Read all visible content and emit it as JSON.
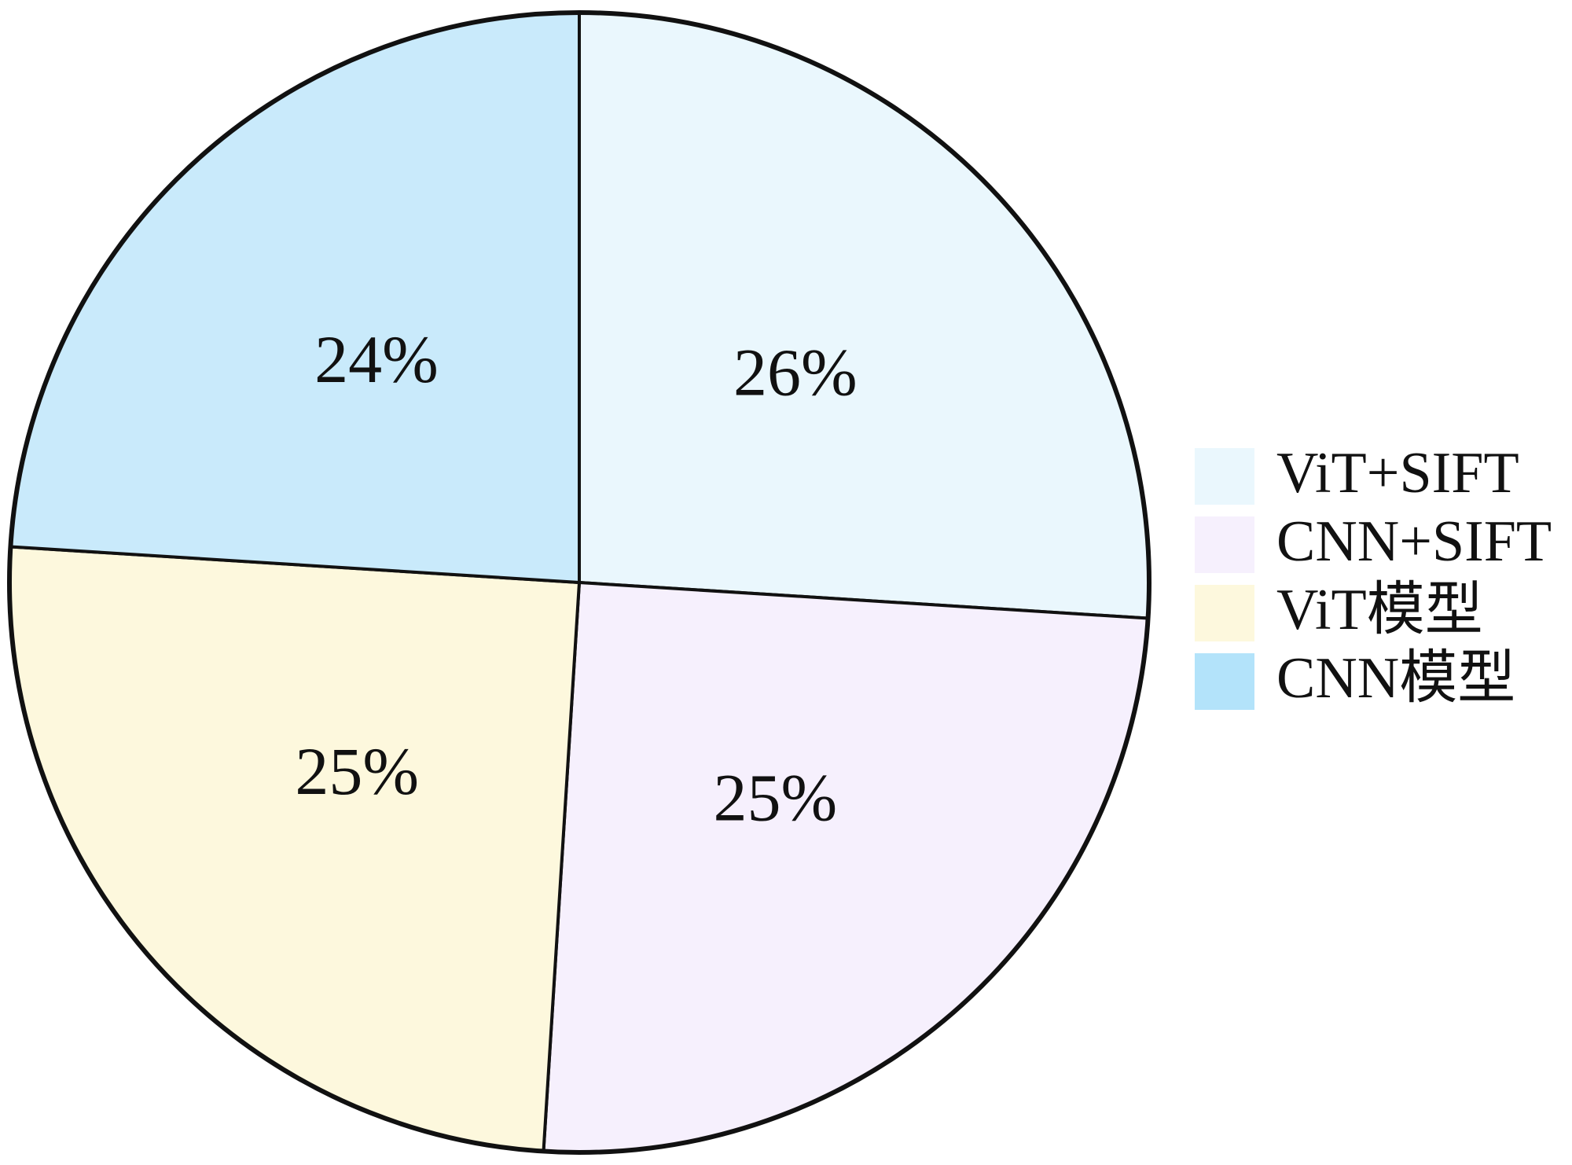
{
  "chart_data": {
    "type": "pie",
    "title": "",
    "slices": [
      {
        "label": "ViT+SIFT",
        "value": 26,
        "value_label": "26%",
        "color": "#eaf7fd"
      },
      {
        "label": "CNN+SIFT",
        "value": 25,
        "value_label": "25%",
        "color": "#f6f0fd"
      },
      {
        "label": "ViT模型",
        "value": 25,
        "value_label": "25%",
        "color": "#fdf8dd"
      },
      {
        "label": "CNN模型",
        "value": 24,
        "value_label": "24%",
        "color": "#c9eafb"
      }
    ],
    "start_direction": "12 o'clock",
    "order": "clockwise",
    "legend_position": "right",
    "outline_color": "#111111",
    "legend_swatch_colors": [
      "#eaf7fd",
      "#f6f0fd",
      "#fdf8dd",
      "#b3e3fa"
    ]
  }
}
